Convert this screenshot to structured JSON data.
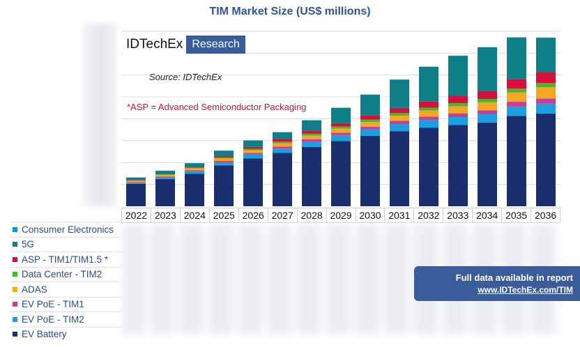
{
  "chart_data": {
    "type": "bar",
    "stacked": true,
    "title": "TIM Market Size (US$ millions)",
    "categories": [
      "2022",
      "2023",
      "2024",
      "2025",
      "2026",
      "2027",
      "2028",
      "2029",
      "2030",
      "2031",
      "2032",
      "2033",
      "2034",
      "2035",
      "2036"
    ],
    "ylim": [
      0,
      7.6
    ],
    "series": [
      {
        "name": "EV Battery",
        "color": "#1a2d6e",
        "values": [
          0.95,
          1.16,
          1.38,
          1.74,
          2.04,
          2.28,
          2.53,
          2.78,
          3.0,
          3.2,
          3.35,
          3.46,
          3.56,
          3.85,
          3.95
        ]
      },
      {
        "name": "EV PoE - TIM2",
        "color": "#1aa0e0",
        "values": [
          0.05,
          0.07,
          0.1,
          0.13,
          0.16,
          0.18,
          0.22,
          0.24,
          0.27,
          0.3,
          0.32,
          0.34,
          0.36,
          0.4,
          0.42
        ]
      },
      {
        "name": "EV PoE - TIM1",
        "color": "#c2409a",
        "values": [
          0.03,
          0.04,
          0.05,
          0.06,
          0.07,
          0.08,
          0.1,
          0.11,
          0.12,
          0.14,
          0.15,
          0.16,
          0.17,
          0.2,
          0.22
        ]
      },
      {
        "name": "ADAS",
        "color": "#f5a623",
        "values": [
          0.05,
          0.06,
          0.08,
          0.1,
          0.12,
          0.14,
          0.16,
          0.18,
          0.2,
          0.22,
          0.26,
          0.3,
          0.34,
          0.4,
          0.48
        ]
      },
      {
        "name": "Data Center - TIM2",
        "color": "#4bb52e",
        "values": [
          0.02,
          0.03,
          0.04,
          0.05,
          0.06,
          0.07,
          0.08,
          0.09,
          0.1,
          0.11,
          0.12,
          0.13,
          0.14,
          0.16,
          0.18
        ]
      },
      {
        "name": "ASP - TIM1/TIM1.5 *",
        "color": "#d6103d",
        "values": [
          0.02,
          0.03,
          0.04,
          0.06,
          0.08,
          0.1,
          0.12,
          0.14,
          0.18,
          0.22,
          0.26,
          0.3,
          0.34,
          0.4,
          0.45
        ]
      },
      {
        "name": "5G",
        "color": "#0e7f86",
        "values": [
          0.1,
          0.12,
          0.14,
          0.22,
          0.27,
          0.3,
          0.45,
          0.65,
          0.88,
          1.2,
          1.48,
          1.72,
          1.86,
          1.78,
          1.48
        ]
      },
      {
        "name": "Consumer Electronics",
        "color": "#1798c2",
        "values": [
          0.01,
          0.01,
          0.01,
          0.01,
          0.01,
          0.01,
          0.01,
          0.01,
          0.01,
          0.01,
          0.01,
          0.01,
          0.01,
          0.01,
          0.01
        ]
      }
    ],
    "legend_order": [
      "Consumer Electronics",
      "5G",
      "ASP - TIM1/TIM1.5 *",
      "Data Center - TIM2",
      "ADAS",
      "EV PoE - TIM1",
      "EV PoE - TIM2",
      "EV Battery"
    ],
    "grid": true,
    "logo": {
      "name": "IDTechEx",
      "suffix": "Research"
    },
    "source": "Source: IDTechEx",
    "annotation": "*ASP = Advanced Semiconductor Packaging",
    "banner": {
      "line1": "Full data available in report",
      "line2": "www.IDTechEx.com/TIM"
    }
  }
}
